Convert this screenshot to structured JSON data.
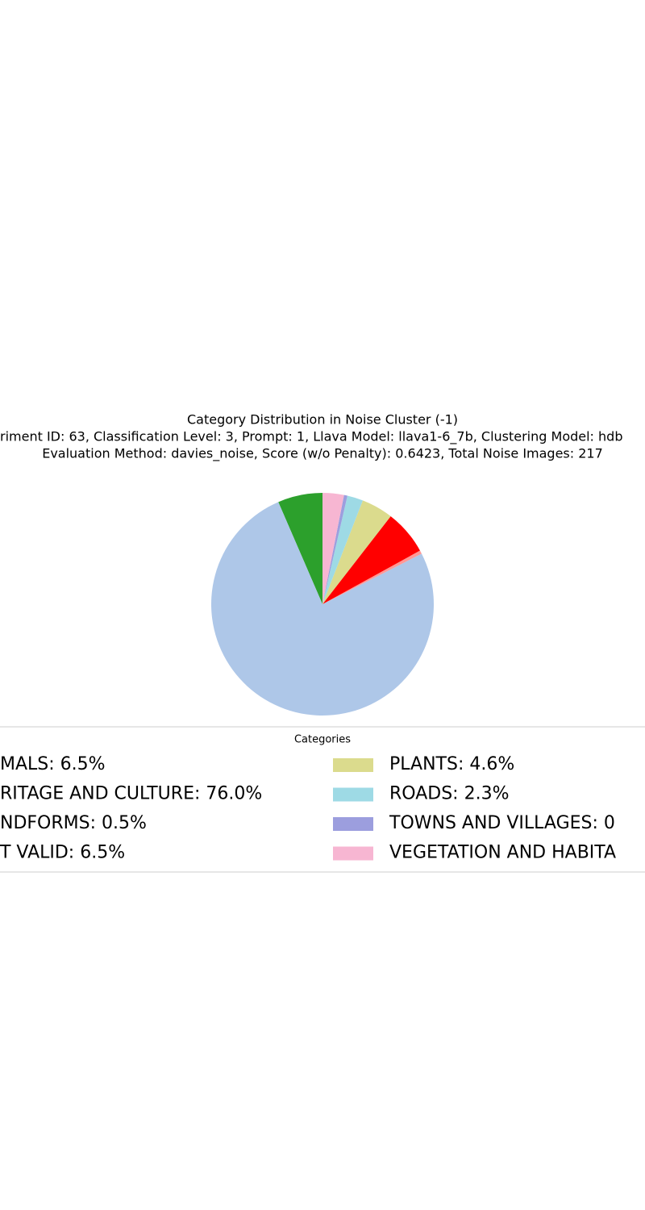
{
  "chart_data": {
    "type": "pie",
    "title": "Category Distribution in Noise Cluster (-1)",
    "subtitle_lines": [
      "riment ID: 63, Classification Level: 3, Prompt: 1, Llava Model: llava1-6_7b, Clustering Model: hdb",
      "Evaluation Method: davies_noise, Score (w/o Penalty): 0.6423, Total Noise Images: 217"
    ],
    "legend_title": "Categories",
    "categories": [
      "MALS: 6.5%",
      "RITAGE AND CULTURE: 76.0%",
      "NDFORMS: 0.5%",
      "T VALID: 6.5%",
      "PLANTS: 4.6%",
      "ROADS: 2.3%",
      "TOWNS AND VILLAGES: 0",
      "VEGETATION AND HABITA"
    ],
    "values": [
      6.5,
      76.0,
      0.5,
      6.5,
      4.6,
      2.3,
      0.5,
      3.1
    ],
    "colors": [
      "#2ca02c",
      "#aec7e8",
      "#ff9896",
      "#ff0000",
      "#dbdb8d",
      "#9edae5",
      "#9c9ede",
      "#f7b6d2"
    ]
  }
}
